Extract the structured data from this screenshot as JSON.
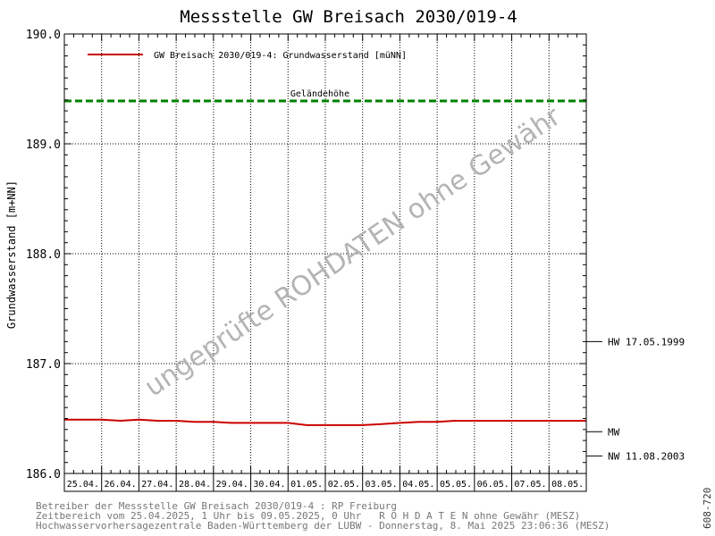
{
  "chart_data": {
    "type": "line",
    "title": "Messstelle GW Breisach 2030/019-4",
    "ylabel": "Grundwasserstand [m+NN]",
    "xlabel": "",
    "ylim": [
      186.0,
      190.0
    ],
    "y_ticks": [
      "186.0",
      "187.0",
      "188.0",
      "189.0",
      "190.0"
    ],
    "categories": [
      "25.04.",
      "26.04.",
      "27.04.",
      "28.04.",
      "29.04.",
      "30.04.",
      "01.05.",
      "02.05.",
      "03.05.",
      "04.05.",
      "05.05.",
      "06.05.",
      "07.05.",
      "08.05."
    ],
    "grid": true,
    "legend_position": "top-left",
    "series": [
      {
        "name": "GW Breisach 2030/019-4: Grundwasserstand [müNN]",
        "color": "#cc0000",
        "x": [
          0,
          0.5,
          1,
          1.5,
          2,
          2.5,
          3,
          3.5,
          4,
          4.5,
          5,
          5.5,
          6,
          6.5,
          7,
          7.5,
          8,
          8.5,
          9,
          9.5,
          10,
          10.5,
          11,
          11.5,
          12,
          12.5,
          13,
          13.5,
          14
        ],
        "values": [
          186.49,
          186.49,
          186.49,
          186.48,
          186.49,
          186.48,
          186.48,
          186.47,
          186.47,
          186.46,
          186.46,
          186.46,
          186.46,
          186.44,
          186.44,
          186.44,
          186.44,
          186.45,
          186.46,
          186.47,
          186.47,
          186.48,
          186.48,
          186.48,
          186.48,
          186.48,
          186.48,
          186.48,
          186.48
        ]
      }
    ],
    "reference_lines": [
      {
        "label": "Geländehöhe",
        "value": 189.39,
        "color": "#008000",
        "style": "dashed"
      }
    ],
    "right_markers": [
      {
        "label": "HW 17.05.1999",
        "value": 187.2
      },
      {
        "label": "MW",
        "value": 186.38
      },
      {
        "label": "NW 11.08.2003",
        "value": 186.16
      }
    ],
    "watermark": "ungeprüfte ROHDATEN ohne Gewähr"
  },
  "footer": {
    "line1": "Betreiber der Messstelle GW Breisach 2030/019-4 : RP Freiburg",
    "line2": "Zeitbereich vom 25.04.2025, 1 Uhr bis 09.05.2025, 0 Uhr   R O H D A T E N ohne Gewähr (MESZ)",
    "line3": "Hochwasservorhersagezentrale Baden-Württemberg der LUBW - Donnerstag, 8. Mai 2025 23:06:36 (MESZ)"
  },
  "side_code": "608-720"
}
